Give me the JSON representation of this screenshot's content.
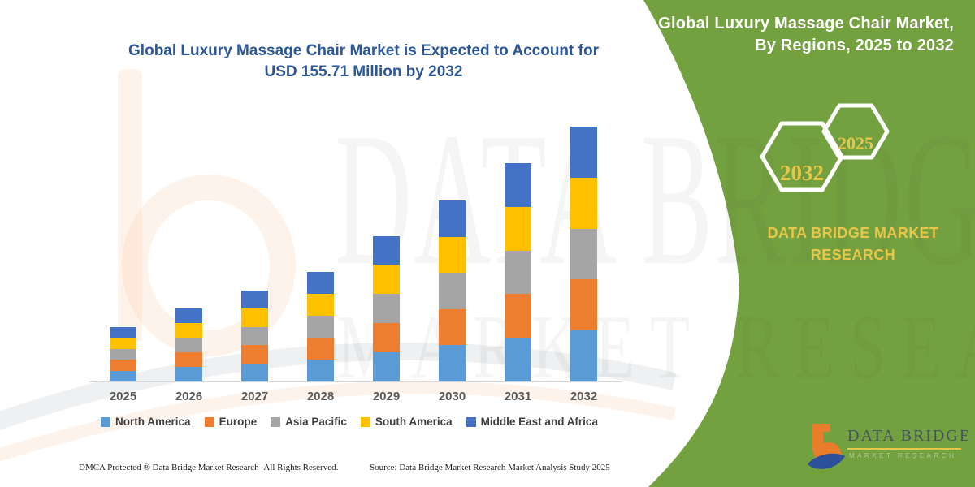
{
  "chart_panel": {
    "title_line1": "Global Luxury Massage Chair Market is Expected to Account for",
    "title_line2": "USD 155.71 Million by 2032",
    "title_color": "#2B5797",
    "footer_left": "DMCA Protected ® Data Bridge Market Research-  All Rights Reserved.",
    "footer_source": "Source: Data Bridge Market Research  Market Analysis Study 2025"
  },
  "chart_data": {
    "type": "bar",
    "stacked": true,
    "title": "Global Luxury Massage Chair Market is Expected to Account for USD 155.71 Million by 2032",
    "unit": "USD Million",
    "xlabel": "",
    "ylabel": "",
    "ylim": [
      0,
      160
    ],
    "grid": false,
    "legend_position": "bottom",
    "categories": [
      "2025",
      "2026",
      "2027",
      "2028",
      "2029",
      "2030",
      "2031",
      "2032"
    ],
    "series": [
      {
        "name": "North America",
        "color": "#5B9BD5",
        "values": [
          6.7,
          9.0,
          11.1,
          13.4,
          17.8,
          22.1,
          26.7,
          31.15
        ]
      },
      {
        "name": "Europe",
        "color": "#ED7D31",
        "values": [
          6.7,
          9.0,
          11.1,
          13.4,
          17.8,
          22.1,
          26.7,
          31.14
        ]
      },
      {
        "name": "Asia Pacific",
        "color": "#A5A5A5",
        "values": [
          6.7,
          9.0,
          11.1,
          13.4,
          17.8,
          22.1,
          26.7,
          31.14
        ]
      },
      {
        "name": "South America",
        "color": "#FFC000",
        "values": [
          6.7,
          9.0,
          11.1,
          13.4,
          17.8,
          22.1,
          26.7,
          31.14
        ]
      },
      {
        "name": "Middle East and Africa",
        "color": "#4472C4",
        "values": [
          6.7,
          9.0,
          11.1,
          13.4,
          17.8,
          22.1,
          26.7,
          31.14
        ]
      }
    ],
    "totals": [
      33.5,
      45.0,
      55.5,
      67.0,
      89.0,
      110.5,
      133.5,
      155.71
    ]
  },
  "side_panel": {
    "bg_color": "#73A13F",
    "accent_text_color": "#E7C64A",
    "title_line1": "Global Luxury Massage Chair Market,",
    "title_line2": "By Regions, 2025 to 2032",
    "hexagons": [
      {
        "label": "2032"
      },
      {
        "label": "2025"
      }
    ],
    "brand_line1": "DATA BRIDGE MARKET",
    "brand_line2": "RESEARCH"
  },
  "logo": {
    "title": "DATA BRIDGE",
    "subtitle": "MARKET RESEARCH",
    "orange": "#E87E2B",
    "blue": "#2C5099"
  },
  "watermark": {
    "line1": "DATA BRIDGE",
    "line2": "MARKET RESEARCH"
  }
}
